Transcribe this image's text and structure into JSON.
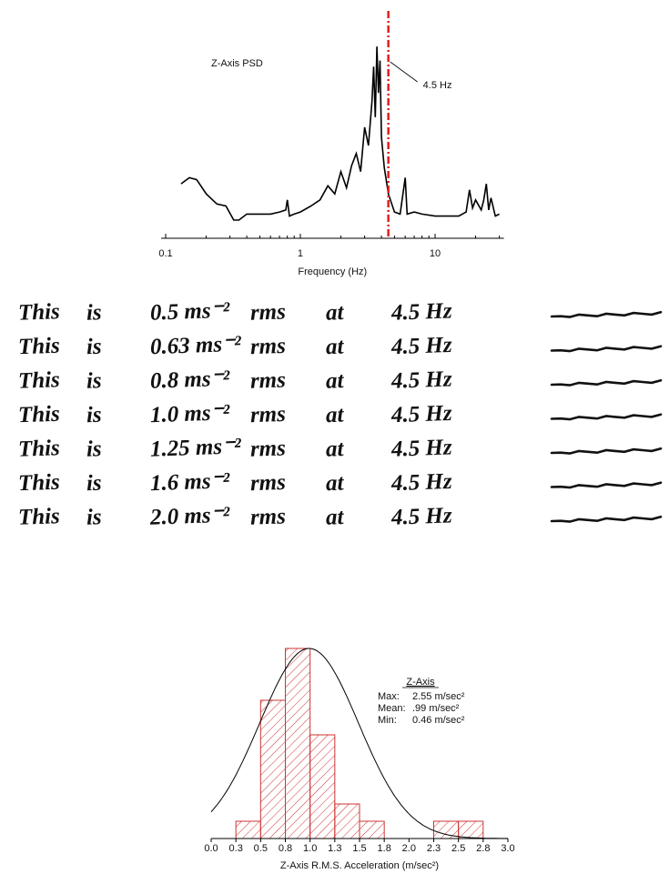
{
  "chart_data": [
    {
      "type": "line",
      "title": "Z-Axis PSD",
      "x_label": "Frequency (Hz)",
      "log_x": true,
      "xlim": [
        0.1,
        30
      ],
      "xticks": [
        0.1,
        1,
        10
      ],
      "ylim": [
        0,
        100
      ],
      "color": "#000000",
      "x": [
        0.13,
        0.15,
        0.17,
        0.2,
        0.24,
        0.28,
        0.32,
        0.35,
        0.4,
        0.5,
        0.6,
        0.7,
        0.78,
        0.8,
        0.83,
        0.9,
        1.0,
        1.2,
        1.4,
        1.6,
        1.8,
        2.0,
        2.2,
        2.4,
        2.6,
        2.8,
        3.0,
        3.2,
        3.4,
        3.5,
        3.6,
        3.7,
        3.8,
        3.9,
        4.0,
        4.2,
        4.5,
        5.0,
        5.5,
        6.0,
        6.2,
        7,
        8,
        10,
        12,
        15,
        17,
        18,
        19,
        20,
        22,
        23,
        24,
        25,
        26,
        28,
        30
      ],
      "values": [
        27,
        30,
        29,
        22,
        17,
        16,
        9,
        9,
        12,
        12,
        12,
        13,
        14,
        19,
        11,
        12,
        13,
        16,
        19,
        26,
        22,
        33,
        25,
        36,
        42,
        33,
        55,
        46,
        68,
        85,
        60,
        95,
        72,
        88,
        50,
        35,
        22,
        13,
        12,
        30,
        12,
        13,
        12,
        11,
        11,
        11,
        13,
        24,
        15,
        19,
        14,
        19,
        27,
        14,
        20,
        11,
        12
      ],
      "annotation": {
        "text": "4.5 Hz",
        "x": 4.5,
        "color": "#e02020"
      }
    },
    {
      "type": "histogram",
      "x_label": "Z-Axis R.M.S. Acceleration (m/sec²)",
      "color": "#cc3333",
      "bins": [
        0.25,
        0.5,
        0.75,
        1.0,
        1.25,
        1.5,
        1.75,
        2.0,
        2.25,
        2.5,
        2.75
      ],
      "values": [
        1,
        8,
        11,
        6,
        2,
        1,
        0,
        0,
        1,
        1
      ],
      "xlim": [
        0,
        3
      ],
      "ylim": [
        0,
        11
      ],
      "xticks": [
        {
          "value": 0,
          "label": "0.0"
        },
        {
          "value": 0.25,
          "label": "0.3"
        },
        {
          "value": 0.5,
          "label": "0.5"
        },
        {
          "value": 0.75,
          "label": "0.8"
        },
        {
          "value": 1,
          "label": "1.0"
        },
        {
          "value": 1.25,
          "label": "1.3"
        },
        {
          "value": 1.5,
          "label": "1.5"
        },
        {
          "value": 1.75,
          "label": "1.8"
        },
        {
          "value": 2,
          "label": "2.0"
        },
        {
          "value": 2.25,
          "label": "2.3"
        },
        {
          "value": 2.5,
          "label": "2.5"
        },
        {
          "value": 2.75,
          "label": "2.8"
        },
        {
          "value": 3,
          "label": "3.0"
        }
      ],
      "normal_curve": {
        "mean": 0.99,
        "sd": 0.5,
        "peak": 11
      },
      "stats": {
        "title": "Z-Axis",
        "rows": [
          [
            "Max:",
            "2.55 m/sec²"
          ],
          [
            "Mean:",
            ".99 m/sec²"
          ],
          [
            "Min:",
            "0.46 m/sec²"
          ]
        ]
      }
    }
  ],
  "handwriting": {
    "lines": [
      [
        "This",
        "is",
        "0.5 ms⁻²",
        "rms",
        "at",
        "4.5 Hz"
      ],
      [
        "This",
        "is",
        "0.63 ms⁻²",
        "rms",
        "at",
        "4.5 Hz"
      ],
      [
        "This",
        "is",
        "0.8 ms⁻²",
        "rms",
        "at",
        "4.5 Hz"
      ],
      [
        "This",
        "is",
        "1.0 ms⁻²",
        "rms",
        "at",
        "4.5 Hz"
      ],
      [
        "This",
        "is",
        "1.25 ms⁻²",
        "rms",
        "at",
        "4.5 Hz"
      ],
      [
        "This",
        "is",
        "1.6 ms⁻²",
        "rms",
        "at",
        "4.5 Hz"
      ],
      [
        "This",
        "is",
        "2.0 ms⁻²",
        "rms",
        "at",
        "4.5 Hz"
      ]
    ]
  }
}
